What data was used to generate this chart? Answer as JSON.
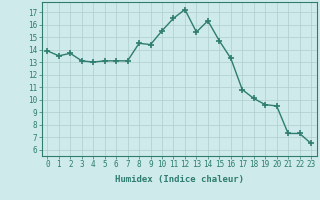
{
  "x": [
    0,
    1,
    2,
    3,
    4,
    5,
    6,
    7,
    8,
    9,
    10,
    11,
    12,
    13,
    14,
    15,
    16,
    17,
    18,
    19,
    20,
    21,
    22,
    23
  ],
  "y": [
    13.9,
    13.5,
    13.7,
    13.1,
    13.0,
    13.1,
    13.1,
    13.1,
    14.5,
    14.4,
    15.5,
    16.5,
    17.2,
    15.4,
    16.3,
    14.7,
    13.3,
    10.8,
    10.1,
    9.6,
    9.5,
    7.3,
    7.3,
    6.5
  ],
  "line_color": "#2e7d6e",
  "marker": "+",
  "marker_size": 4,
  "line_width": 1.0,
  "background_color": "#ceeaea",
  "grid_color": "#b0cece",
  "xlabel": "Humidex (Indice chaleur)",
  "xlim": [
    -0.5,
    23.5
  ],
  "ylim": [
    5.5,
    17.8
  ],
  "yticks": [
    6,
    7,
    8,
    9,
    10,
    11,
    12,
    13,
    14,
    15,
    16,
    17
  ],
  "xtick_labels": [
    "0",
    "1",
    "2",
    "3",
    "4",
    "5",
    "6",
    "7",
    "8",
    "9",
    "10",
    "11",
    "12",
    "13",
    "14",
    "15",
    "16",
    "17",
    "18",
    "19",
    "20",
    "21",
    "22",
    "23"
  ],
  "tick_color": "#2e7d6e",
  "label_fontsize": 6.5,
  "tick_fontsize": 5.5
}
